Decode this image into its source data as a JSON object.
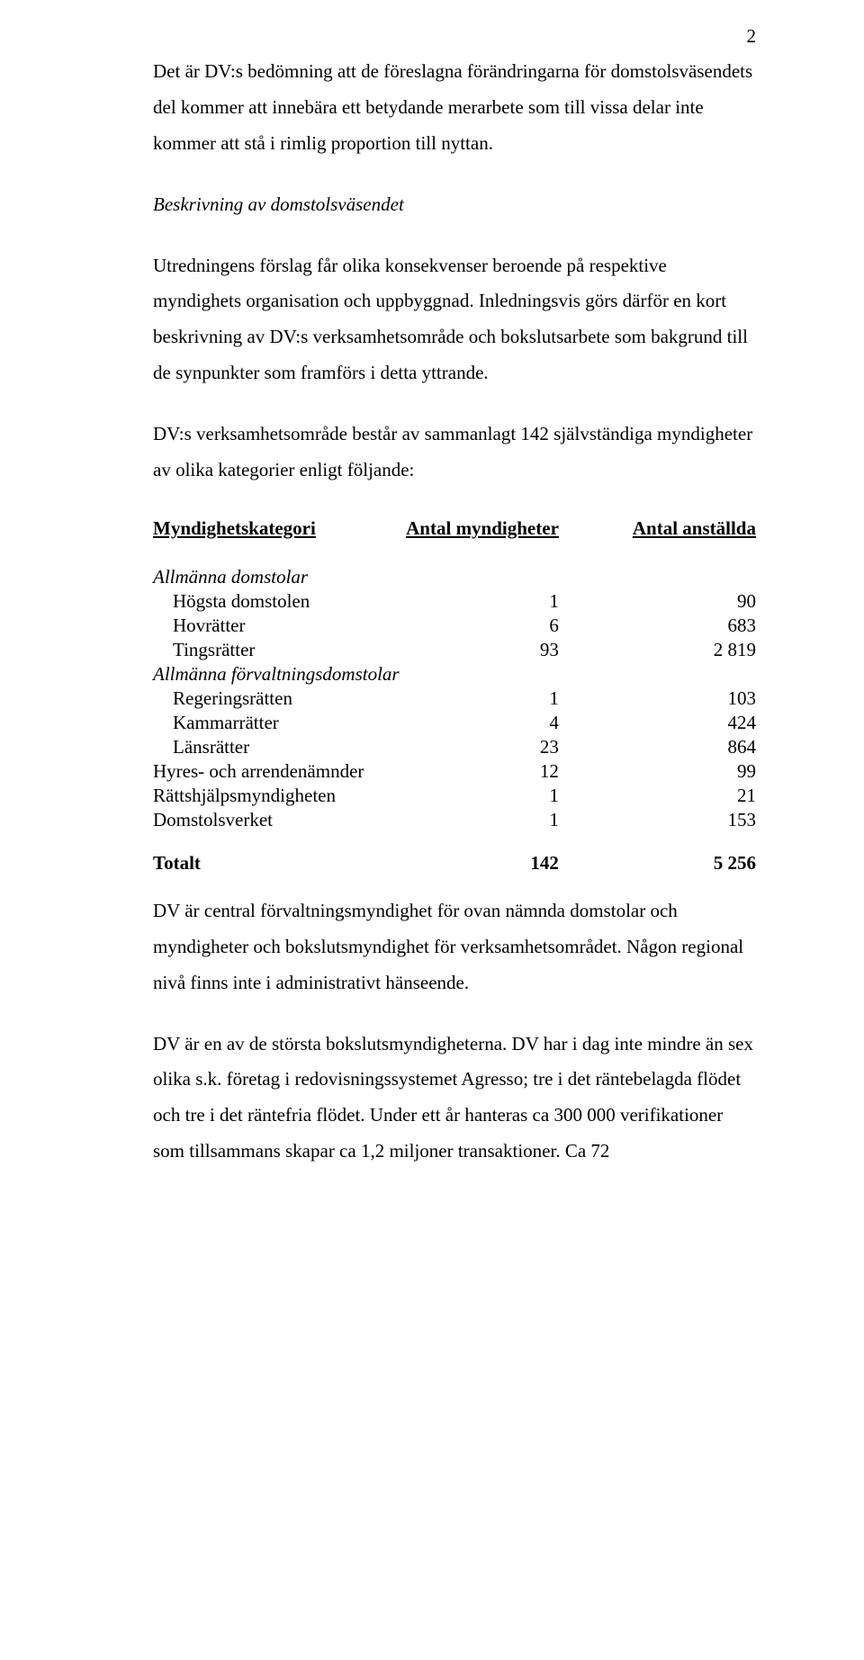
{
  "page_number": "2",
  "para1": "Det är DV:s bedömning att de föreslagna förändringarna för domstolsväsendets del kommer att innebära ett betydande merarbete som till vissa delar inte kommer att stå i rimlig proportion till nyttan.",
  "heading1": "Beskrivning av domstolsväsendet",
  "para2": "Utredningens förslag får olika konsekvenser beroende på respektive myndighets organisation och uppbyggnad. Inledningsvis görs därför en kort beskrivning av DV:s verksamhetsområde och bokslutsarbete som bakgrund till de synpunkter som framförs i detta yttrande.",
  "para3": "DV:s verksamhetsområde består av sammanlagt 142 självständiga myndigheter av olika kategorier enligt följande:",
  "table": {
    "col1": "Myndighetskategori",
    "col2": "Antal myndigheter",
    "col3": "Antal anställda",
    "rows": [
      {
        "type": "section",
        "label": "Allmänna domstolar"
      },
      {
        "type": "row",
        "label": "Högsta domstolen",
        "a": "1",
        "b": "90"
      },
      {
        "type": "row",
        "label": "Hovrätter",
        "a": "6",
        "b": "683"
      },
      {
        "type": "row",
        "label": "Tingsrätter",
        "a": "93",
        "b": "2 819"
      },
      {
        "type": "section",
        "label": "Allmänna förvaltningsdomstolar"
      },
      {
        "type": "row",
        "label": "Regeringsrätten",
        "a": "1",
        "b": "103"
      },
      {
        "type": "row",
        "label": "Kammarrätter",
        "a": "4",
        "b": "424"
      },
      {
        "type": "row",
        "label": "Länsrätter",
        "a": "23",
        "b": "864"
      },
      {
        "type": "plain",
        "label": "Hyres- och arrendenämnder",
        "a": "12",
        "b": "99"
      },
      {
        "type": "plain",
        "label": "Rättshjälpsmyndigheten",
        "a": "1",
        "b": "21"
      },
      {
        "type": "plain",
        "label": "Domstolsverket",
        "a": "1",
        "b": "153"
      }
    ],
    "total": {
      "label": "Totalt",
      "a": "142",
      "b": "5 256"
    }
  },
  "para4": "DV är central förvaltningsmyndighet för ovan nämnda domstolar och myndigheter och bokslutsmyndighet för verksamhetsområdet. Någon regional nivå finns inte i administrativt hänseende.",
  "para5": "DV är en av de största bokslutsmyndigheterna. DV har i dag inte mindre än sex olika s.k. företag i redovisningssystemet Agresso; tre i det räntebelagda flödet och tre i det räntefria flödet. Under ett år hanteras ca 300 000 verifikationer som tillsammans skapar ca 1,2 miljoner transaktioner. Ca 72"
}
